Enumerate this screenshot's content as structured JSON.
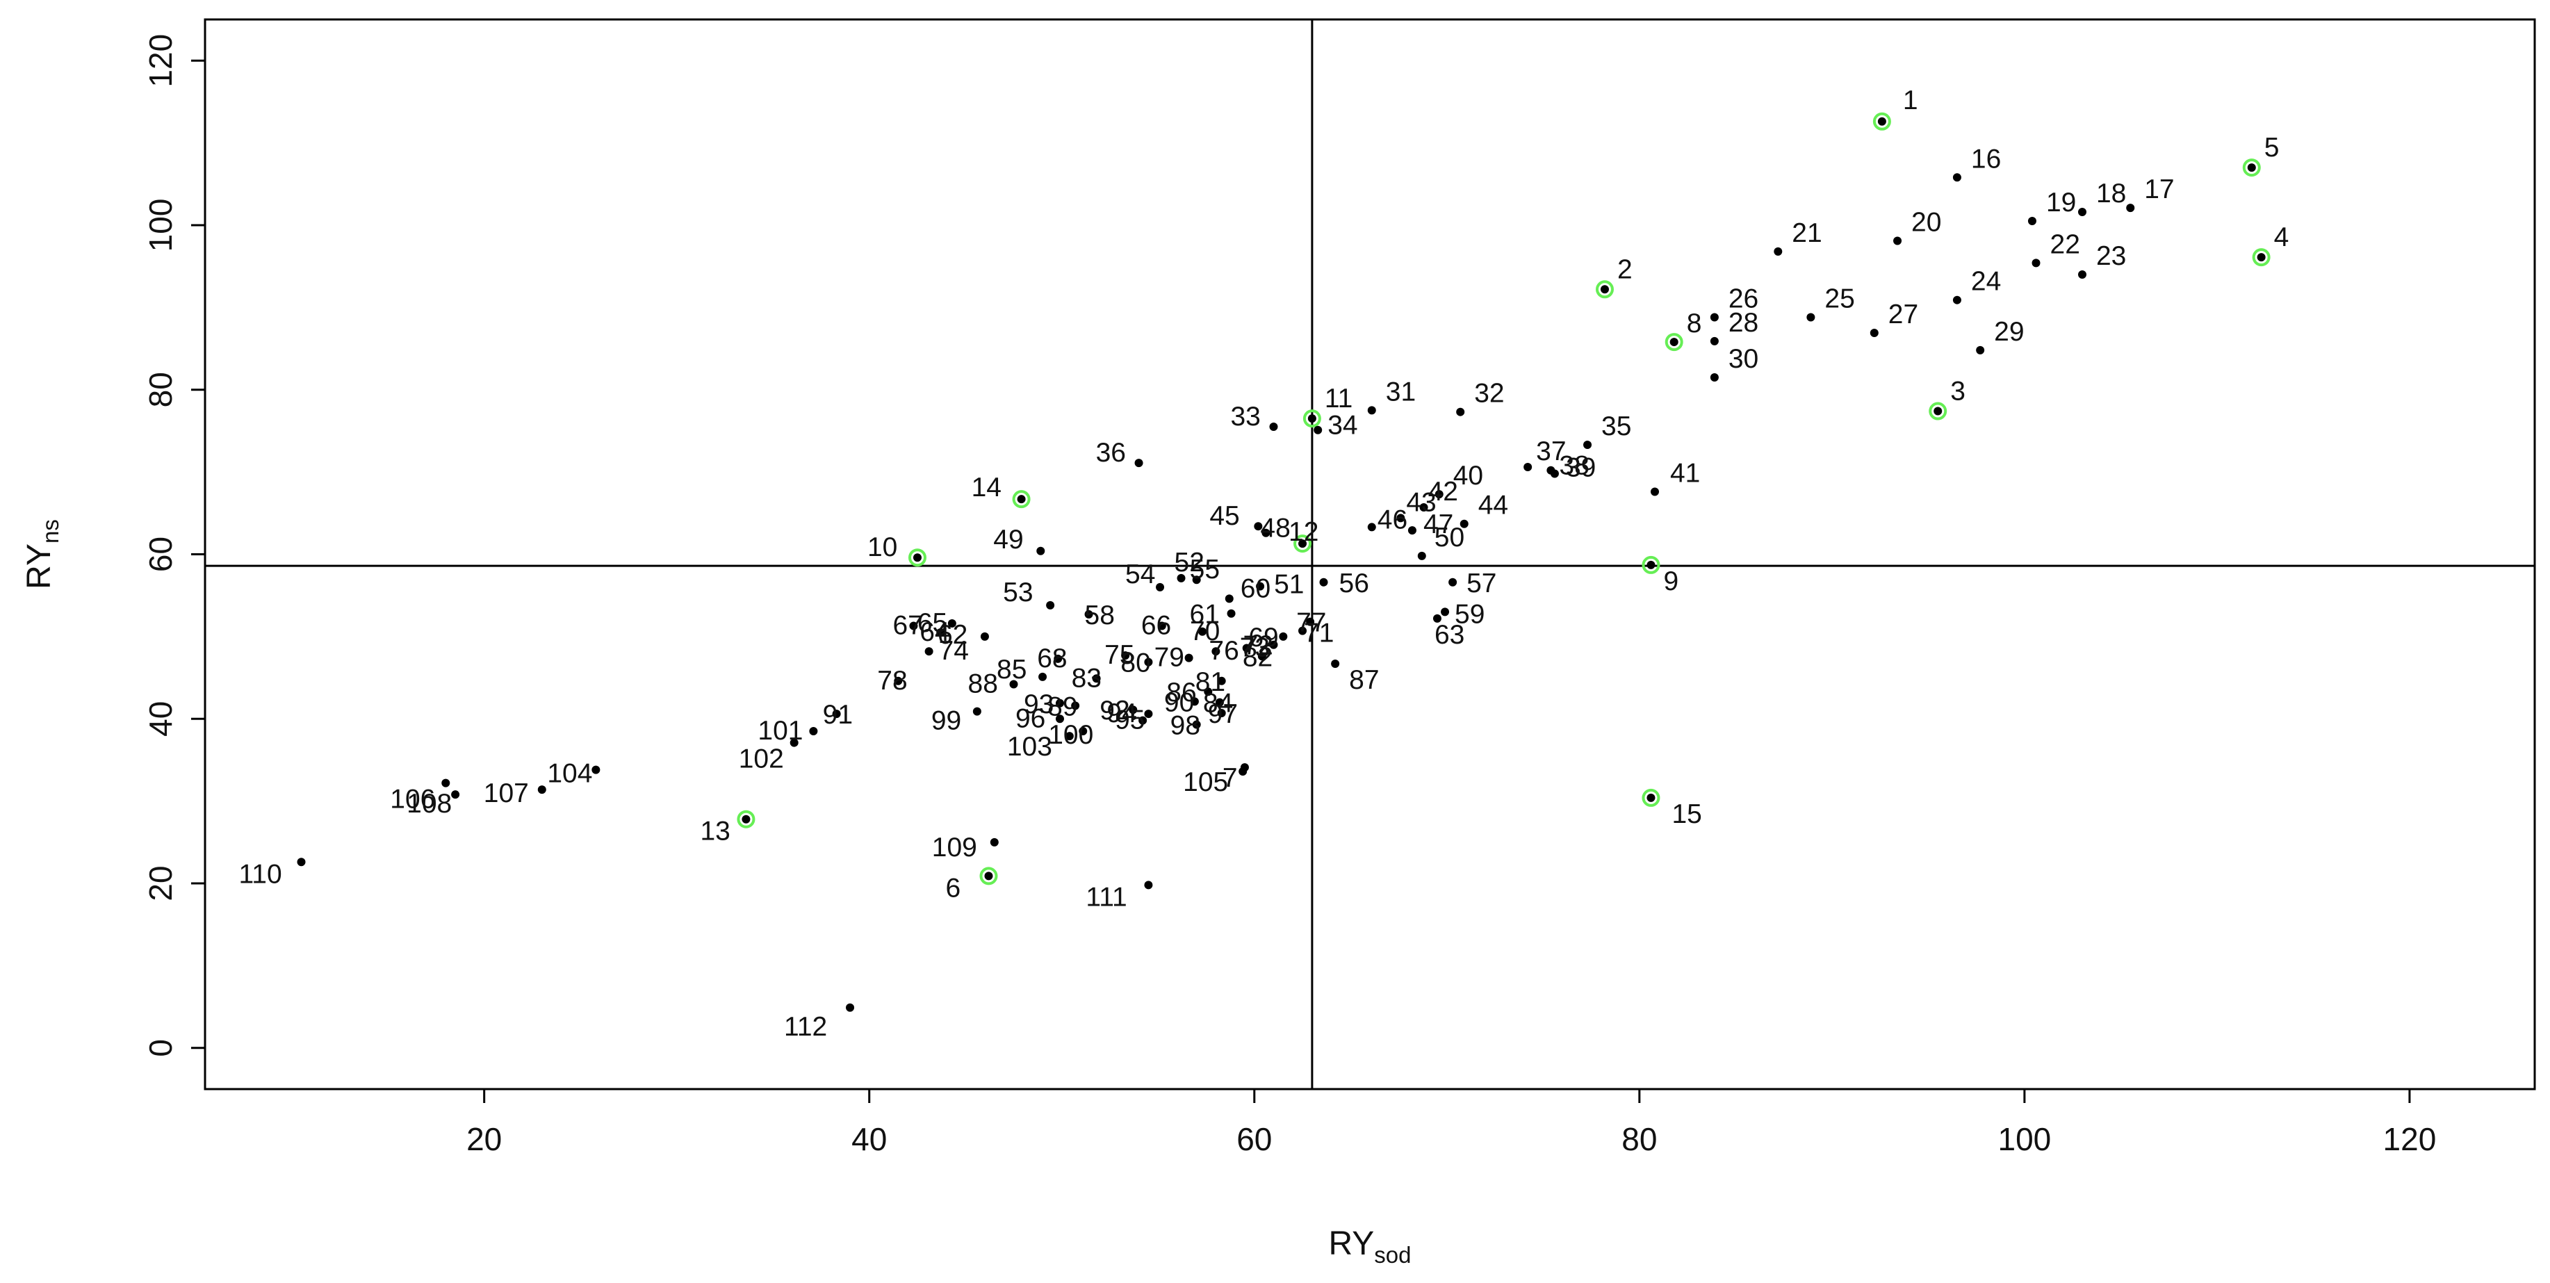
{
  "chart_data": {
    "type": "scatter",
    "title": "",
    "xlabel": "RY",
    "xlabel_sub": "sod",
    "ylabel": "RY",
    "ylabel_sub": "ns",
    "xlim": [
      5.5,
      126.5
    ],
    "ylim": [
      -5,
      125
    ],
    "xticks": [
      20,
      40,
      60,
      80,
      100,
      120
    ],
    "yticks": [
      0,
      20,
      40,
      60,
      80,
      100,
      120
    ],
    "grid": false,
    "legend": "none",
    "ref_lines": {
      "x": 63,
      "y": 58.6
    },
    "colors": {
      "point": "#000000",
      "highlight_ring": "#66ee55",
      "axis": "#000000"
    },
    "points": [
      {
        "label": "1",
        "x": 92.6,
        "y": 112.6,
        "hl": true
      },
      {
        "label": "2",
        "x": 78.2,
        "y": 92.2,
        "hl": true
      },
      {
        "label": "3",
        "x": 95.5,
        "y": 77.4,
        "hl": true
      },
      {
        "label": "4",
        "x": 112.3,
        "y": 96.1,
        "hl": true
      },
      {
        "label": "5",
        "x": 111.8,
        "y": 107.0,
        "hl": true
      },
      {
        "label": "6",
        "x": 46.2,
        "y": 20.9,
        "hl": true
      },
      {
        "label": "7",
        "x": 59.5,
        "y": 34.1,
        "hl": false
      },
      {
        "label": "8",
        "x": 81.8,
        "y": 85.8,
        "hl": true
      },
      {
        "label": "9",
        "x": 80.6,
        "y": 58.7,
        "hl": true
      },
      {
        "label": "10",
        "x": 42.5,
        "y": 59.6,
        "hl": true
      },
      {
        "label": "11",
        "x": 63.0,
        "y": 76.5,
        "hl": true
      },
      {
        "label": "12",
        "x": 62.5,
        "y": 61.3,
        "hl": true
      },
      {
        "label": "13",
        "x": 33.6,
        "y": 27.8,
        "hl": true
      },
      {
        "label": "14",
        "x": 47.9,
        "y": 66.7,
        "hl": true
      },
      {
        "label": "15",
        "x": 80.6,
        "y": 30.4,
        "hl": true
      },
      {
        "label": "16",
        "x": 96.5,
        "y": 105.8,
        "hl": false
      },
      {
        "label": "17",
        "x": 105.5,
        "y": 102.1,
        "hl": false
      },
      {
        "label": "18",
        "x": 103.0,
        "y": 101.6,
        "hl": false
      },
      {
        "label": "19",
        "x": 100.4,
        "y": 100.5,
        "hl": false
      },
      {
        "label": "20",
        "x": 93.4,
        "y": 98.1,
        "hl": false
      },
      {
        "label": "21",
        "x": 87.2,
        "y": 96.8,
        "hl": false
      },
      {
        "label": "22",
        "x": 100.6,
        "y": 95.4,
        "hl": false
      },
      {
        "label": "23",
        "x": 103.0,
        "y": 94.0,
        "hl": false
      },
      {
        "label": "24",
        "x": 96.5,
        "y": 90.9,
        "hl": false
      },
      {
        "label": "25",
        "x": 88.9,
        "y": 88.8,
        "hl": false
      },
      {
        "label": "26",
        "x": 83.9,
        "y": 88.8,
        "hl": false
      },
      {
        "label": "27",
        "x": 92.2,
        "y": 86.9,
        "hl": false
      },
      {
        "label": "28",
        "x": 83.9,
        "y": 85.9,
        "hl": false
      },
      {
        "label": "29",
        "x": 97.7,
        "y": 84.8,
        "hl": false
      },
      {
        "label": "30",
        "x": 83.9,
        "y": 81.5,
        "hl": false
      },
      {
        "label": "31",
        "x": 66.1,
        "y": 77.5,
        "hl": false
      },
      {
        "label": "32",
        "x": 70.7,
        "y": 77.3,
        "hl": false
      },
      {
        "label": "33",
        "x": 61.0,
        "y": 75.5,
        "hl": false
      },
      {
        "label": "34",
        "x": 63.3,
        "y": 75.1,
        "hl": false
      },
      {
        "label": "35",
        "x": 77.3,
        "y": 73.3,
        "hl": false
      },
      {
        "label": "36",
        "x": 54.0,
        "y": 71.1,
        "hl": false
      },
      {
        "label": "37",
        "x": 74.2,
        "y": 70.6,
        "hl": false
      },
      {
        "label": "38",
        "x": 75.4,
        "y": 70.2,
        "hl": false
      },
      {
        "label": "39",
        "x": 75.6,
        "y": 69.8,
        "hl": false
      },
      {
        "label": "40",
        "x": 69.6,
        "y": 67.3,
        "hl": false
      },
      {
        "label": "41",
        "x": 80.8,
        "y": 67.6,
        "hl": false
      },
      {
        "label": "42",
        "x": 68.8,
        "y": 65.7,
        "hl": false
      },
      {
        "label": "43",
        "x": 67.6,
        "y": 64.4,
        "hl": false
      },
      {
        "label": "44",
        "x": 70.9,
        "y": 63.7,
        "hl": false
      },
      {
        "label": "45",
        "x": 60.2,
        "y": 63.4,
        "hl": false
      },
      {
        "label": "46",
        "x": 66.1,
        "y": 63.3,
        "hl": false
      },
      {
        "label": "47",
        "x": 68.2,
        "y": 62.9,
        "hl": false
      },
      {
        "label": "48",
        "x": 60.6,
        "y": 62.6,
        "hl": false
      },
      {
        "label": "49",
        "x": 48.9,
        "y": 60.4,
        "hl": false
      },
      {
        "label": "50",
        "x": 68.7,
        "y": 59.8,
        "hl": false
      },
      {
        "label": "51",
        "x": 60.3,
        "y": 56.1,
        "hl": false
      },
      {
        "label": "52",
        "x": 56.2,
        "y": 57.1,
        "hl": false
      },
      {
        "label": "53",
        "x": 49.4,
        "y": 53.8,
        "hl": false
      },
      {
        "label": "54",
        "x": 55.1,
        "y": 56.0,
        "hl": false
      },
      {
        "label": "55",
        "x": 57.0,
        "y": 56.9,
        "hl": false
      },
      {
        "label": "56",
        "x": 63.6,
        "y": 56.6,
        "hl": false
      },
      {
        "label": "57",
        "x": 70.3,
        "y": 56.6,
        "hl": false
      },
      {
        "label": "58",
        "x": 51.4,
        "y": 52.7,
        "hl": false
      },
      {
        "label": "59",
        "x": 69.9,
        "y": 53.0,
        "hl": false
      },
      {
        "label": "60",
        "x": 58.7,
        "y": 54.6,
        "hl": false
      },
      {
        "label": "61",
        "x": 58.8,
        "y": 52.8,
        "hl": false
      },
      {
        "label": "62",
        "x": 46.0,
        "y": 50.0,
        "hl": false
      },
      {
        "label": "63",
        "x": 69.5,
        "y": 52.2,
        "hl": false
      },
      {
        "label": "64",
        "x": 43.7,
        "y": 50.5,
        "hl": false
      },
      {
        "label": "65",
        "x": 44.3,
        "y": 51.6,
        "hl": false
      },
      {
        "label": "66",
        "x": 55.2,
        "y": 51.3,
        "hl": false
      },
      {
        "label": "67",
        "x": 42.3,
        "y": 51.3,
        "hl": false
      },
      {
        "label": "68",
        "x": 49.8,
        "y": 47.3,
        "hl": false
      },
      {
        "label": "69",
        "x": 61.5,
        "y": 50.0,
        "hl": false
      },
      {
        "label": "70",
        "x": 57.3,
        "y": 50.6,
        "hl": false
      },
      {
        "label": "71",
        "x": 62.5,
        "y": 50.7,
        "hl": false
      },
      {
        "label": "72",
        "x": 61.0,
        "y": 49.0,
        "hl": false
      },
      {
        "label": "73",
        "x": 59.6,
        "y": 48.6,
        "hl": false
      },
      {
        "label": "74",
        "x": 43.1,
        "y": 48.2,
        "hl": false
      },
      {
        "label": "75",
        "x": 53.3,
        "y": 47.7,
        "hl": false
      },
      {
        "label": "76",
        "x": 58.0,
        "y": 48.2,
        "hl": false
      },
      {
        "label": "77",
        "x": 62.9,
        "y": 51.8,
        "hl": false
      },
      {
        "label": "78",
        "x": 41.5,
        "y": 44.6,
        "hl": false
      },
      {
        "label": "79",
        "x": 56.6,
        "y": 47.4,
        "hl": false
      },
      {
        "label": "80",
        "x": 54.5,
        "y": 46.9,
        "hl": false
      },
      {
        "label": "81",
        "x": 58.3,
        "y": 44.6,
        "hl": false
      },
      {
        "label": "82",
        "x": 60.4,
        "y": 47.6,
        "hl": false
      },
      {
        "label": "83",
        "x": 51.8,
        "y": 44.9,
        "hl": false
      },
      {
        "label": "84",
        "x": 58.2,
        "y": 42.0,
        "hl": false
      },
      {
        "label": "85",
        "x": 49.0,
        "y": 45.1,
        "hl": false
      },
      {
        "label": "86",
        "x": 57.6,
        "y": 43.3,
        "hl": false
      },
      {
        "label": "87",
        "x": 64.2,
        "y": 46.7,
        "hl": false
      },
      {
        "label": "88",
        "x": 47.5,
        "y": 44.2,
        "hl": false
      },
      {
        "label": "89",
        "x": 50.7,
        "y": 41.6,
        "hl": false
      },
      {
        "label": "90",
        "x": 56.9,
        "y": 42.1,
        "hl": false
      },
      {
        "label": "91",
        "x": 38.3,
        "y": 40.6,
        "hl": false
      },
      {
        "label": "92",
        "x": 53.7,
        "y": 41.1,
        "hl": false
      },
      {
        "label": "93",
        "x": 49.9,
        "y": 41.9,
        "hl": false
      },
      {
        "label": "94",
        "x": 54.5,
        "y": 40.6,
        "hl": false
      },
      {
        "label": "95",
        "x": 54.2,
        "y": 39.8,
        "hl": false
      },
      {
        "label": "96",
        "x": 49.9,
        "y": 40.0,
        "hl": false
      },
      {
        "label": "97",
        "x": 58.3,
        "y": 40.7,
        "hl": false
      },
      {
        "label": "98",
        "x": 57.0,
        "y": 39.3,
        "hl": false
      },
      {
        "label": "99",
        "x": 45.6,
        "y": 40.9,
        "hl": false
      },
      {
        "label": "100",
        "x": 51.1,
        "y": 38.5,
        "hl": false
      },
      {
        "label": "101",
        "x": 37.1,
        "y": 38.5,
        "hl": false
      },
      {
        "label": "102",
        "x": 36.1,
        "y": 37.1,
        "hl": false
      },
      {
        "label": "103",
        "x": 50.4,
        "y": 37.9,
        "hl": false
      },
      {
        "label": "104",
        "x": 25.8,
        "y": 33.8,
        "hl": false
      },
      {
        "label": "105",
        "x": 59.4,
        "y": 33.6,
        "hl": false
      },
      {
        "label": "106",
        "x": 18.0,
        "y": 32.2,
        "hl": false
      },
      {
        "label": "107",
        "x": 23.0,
        "y": 31.4,
        "hl": false
      },
      {
        "label": "108",
        "x": 18.5,
        "y": 30.8,
        "hl": false
      },
      {
        "label": "109",
        "x": 46.5,
        "y": 25.0,
        "hl": false
      },
      {
        "label": "110",
        "x": 10.5,
        "y": 22.6,
        "hl": false
      },
      {
        "label": "111",
        "x": 54.5,
        "y": 19.8,
        "hl": false
      },
      {
        "label": "112",
        "x": 39.0,
        "y": 4.9,
        "hl": false
      }
    ]
  }
}
